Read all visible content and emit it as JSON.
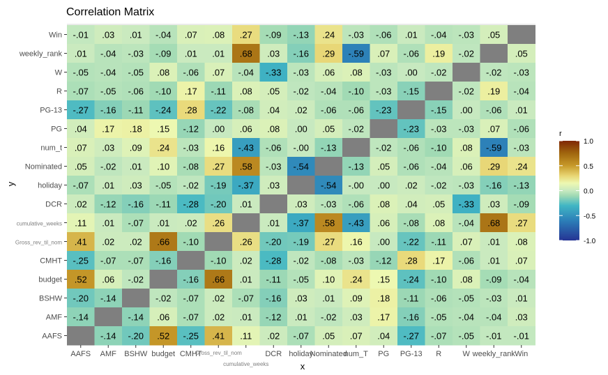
{
  "chart_data": {
    "type": "heatmap",
    "title": "Correlation Matrix",
    "xlabel": "x",
    "ylabel": "y",
    "x_categories": [
      "AAFS",
      "AMF",
      "BSHW",
      "budget",
      "CMHT",
      "Gross_rev_til_nom",
      "cumulative_weeks",
      "DCR",
      "holiday",
      "Nominated",
      "num_T",
      "PG",
      "PG-13",
      "R",
      "W",
      "weekly_rank",
      "Win"
    ],
    "y_categories": [
      "Win",
      "weekly_rank",
      "W",
      "R",
      "PG-13",
      "PG",
      "num_t",
      "Nominated",
      "holiday",
      "DCR",
      "cumulative_weeks",
      "Gross_rev_til_nom",
      "CMHT",
      "budget",
      "BSHW",
      "AMF",
      "AAFS"
    ],
    "values": [
      [
        -0.01,
        0.03,
        0.01,
        -0.04,
        0.07,
        0.08,
        0.27,
        -0.09,
        -0.13,
        0.24,
        -0.03,
        -0.06,
        0.01,
        -0.04,
        -0.03,
        0.05,
        null
      ],
      [
        0.01,
        -0.04,
        -0.03,
        -0.09,
        0.01,
        0.01,
        0.68,
        0.03,
        -0.16,
        0.29,
        -0.59,
        0.07,
        -0.06,
        0.19,
        -0.02,
        null,
        0.05
      ],
      [
        -0.05,
        -0.04,
        -0.05,
        0.08,
        -0.06,
        0.07,
        -0.04,
        -0.33,
        -0.03,
        0.06,
        0.08,
        -0.03,
        0.0,
        -0.02,
        null,
        -0.02,
        -0.03
      ],
      [
        -0.07,
        -0.05,
        -0.06,
        -0.1,
        0.17,
        -0.11,
        0.08,
        0.05,
        -0.02,
        -0.04,
        -0.1,
        -0.03,
        -0.15,
        null,
        -0.02,
        0.19,
        -0.04
      ],
      [
        -0.27,
        -0.16,
        -0.11,
        -0.24,
        0.28,
        -0.22,
        -0.08,
        0.04,
        0.02,
        -0.06,
        -0.06,
        -0.23,
        null,
        -0.15,
        0.0,
        -0.06,
        0.01
      ],
      [
        0.04,
        0.17,
        0.18,
        0.15,
        -0.12,
        0.0,
        0.06,
        0.08,
        0.0,
        0.05,
        -0.02,
        null,
        -0.23,
        -0.03,
        -0.03,
        0.07,
        -0.06
      ],
      [
        0.07,
        0.03,
        0.09,
        0.24,
        -0.03,
        0.16,
        -0.43,
        -0.06,
        -0.0,
        -0.13,
        null,
        -0.02,
        -0.06,
        -0.1,
        0.08,
        -0.59,
        -0.03
      ],
      [
        0.05,
        -0.02,
        0.01,
        0.1,
        -0.08,
        0.27,
        0.58,
        -0.03,
        -0.54,
        null,
        -0.13,
        0.05,
        -0.06,
        -0.04,
        0.06,
        0.29,
        0.24
      ],
      [
        -0.07,
        0.01,
        0.03,
        -0.05,
        -0.02,
        -0.19,
        -0.37,
        0.03,
        null,
        -0.54,
        -0.0,
        0.0,
        0.02,
        -0.02,
        -0.03,
        -0.16,
        -0.13
      ],
      [
        0.02,
        -0.12,
        -0.16,
        -0.11,
        -0.28,
        -0.2,
        0.01,
        null,
        0.03,
        -0.03,
        -0.06,
        0.08,
        0.04,
        0.05,
        -0.33,
        0.03,
        -0.09
      ],
      [
        0.11,
        0.01,
        -0.07,
        0.01,
        0.02,
        0.26,
        null,
        0.01,
        -0.37,
        0.58,
        -0.43,
        0.06,
        -0.08,
        0.08,
        -0.04,
        0.68,
        0.27
      ],
      [
        0.41,
        0.02,
        0.02,
        0.66,
        -0.1,
        null,
        0.26,
        -0.2,
        -0.19,
        0.27,
        0.16,
        0.0,
        -0.22,
        -0.11,
        0.07,
        0.01,
        0.08
      ],
      [
        -0.25,
        -0.07,
        -0.07,
        -0.16,
        null,
        -0.1,
        0.02,
        -0.28,
        -0.02,
        -0.08,
        -0.03,
        -0.12,
        0.28,
        0.17,
        -0.06,
        0.01,
        0.07
      ],
      [
        0.52,
        0.06,
        -0.02,
        null,
        -0.16,
        0.66,
        0.01,
        -0.11,
        -0.05,
        0.1,
        0.24,
        0.15,
        -0.24,
        -0.1,
        0.08,
        -0.09,
        -0.04
      ],
      [
        -0.2,
        -0.14,
        null,
        -0.02,
        -0.07,
        0.02,
        -0.07,
        -0.16,
        0.03,
        0.01,
        0.09,
        0.18,
        -0.11,
        -0.06,
        -0.05,
        -0.03,
        0.01
      ],
      [
        -0.14,
        null,
        -0.14,
        0.06,
        -0.07,
        0.02,
        0.01,
        -0.12,
        0.01,
        -0.02,
        0.03,
        0.17,
        -0.16,
        -0.05,
        -0.04,
        -0.04,
        0.03
      ],
      [
        null,
        -0.14,
        -0.2,
        0.52,
        -0.25,
        0.41,
        0.11,
        0.02,
        -0.07,
        0.05,
        0.07,
        0.04,
        -0.27,
        -0.07,
        -0.05,
        -0.01,
        -0.01
      ]
    ],
    "cell_labels": [
      [
        "-.01",
        ".03",
        ".01",
        "-.04",
        ".07",
        ".08",
        ".27",
        "-.09",
        "-.13",
        ".24",
        "-.03",
        "-.06",
        ".01",
        "-.04",
        "-.03",
        ".05",
        ""
      ],
      [
        ".01",
        "-.04",
        "-.03",
        "-.09",
        ".01",
        ".01",
        ".68",
        ".03",
        "-.16",
        ".29",
        "-.59",
        ".07",
        "-.06",
        ".19",
        "-.02",
        "",
        ".05"
      ],
      [
        "-.05",
        "-.04",
        "-.05",
        ".08",
        "-.06",
        ".07",
        "-.04",
        "-.33",
        "-.03",
        ".06",
        ".08",
        "-.03",
        ".00",
        "-.02",
        "",
        "-.02",
        "-.03"
      ],
      [
        "-.07",
        "-.05",
        "-.06",
        "-.10",
        ".17",
        "-.11",
        ".08",
        ".05",
        "-.02",
        "-.04",
        "-.10",
        "-.03",
        "-.15",
        "",
        "-.02",
        ".19",
        "-.04"
      ],
      [
        "-.27",
        "-.16",
        "-.11",
        "-.24",
        ".28",
        "-.22",
        "-.08",
        ".04",
        ".02",
        "-.06",
        "-.06",
        "-.23",
        "",
        "-.15",
        ".00",
        "-.06",
        ".01"
      ],
      [
        ".04",
        ".17",
        ".18",
        ".15",
        "-.12",
        ".00",
        ".06",
        ".08",
        ".00",
        ".05",
        "-.02",
        "",
        "-.23",
        "-.03",
        "-.03",
        ".07",
        "-.06"
      ],
      [
        ".07",
        ".03",
        ".09",
        ".24",
        "-.03",
        ".16",
        "-.43",
        "-.06",
        "-.00",
        "-.13",
        "",
        "-.02",
        "-.06",
        "-.10",
        ".08",
        "-.59",
        "-.03"
      ],
      [
        ".05",
        "-.02",
        ".01",
        ".10",
        "-.08",
        ".27",
        ".58",
        "-.03",
        "-.54",
        "",
        "-.13",
        ".05",
        "-.06",
        "-.04",
        ".06",
        ".29",
        ".24"
      ],
      [
        "-.07",
        ".01",
        ".03",
        "-.05",
        "-.02",
        "-.19",
        "-.37",
        ".03",
        "",
        "-.54",
        "-.00",
        ".00",
        ".02",
        "-.02",
        "-.03",
        "-.16",
        "-.13"
      ],
      [
        ".02",
        "-.12",
        "-.16",
        "-.11",
        "-.28",
        "-.20",
        ".01",
        "",
        ".03",
        "-.03",
        "-.06",
        ".08",
        ".04",
        ".05",
        "-.33",
        ".03",
        "-.09"
      ],
      [
        ".11",
        ".01",
        "-.07",
        ".01",
        ".02",
        ".26",
        "",
        ".01",
        "-.37",
        ".58",
        "-.43",
        ".06",
        "-.08",
        ".08",
        "-.04",
        ".68",
        ".27"
      ],
      [
        ".41",
        ".02",
        ".02",
        ".66",
        "-.10",
        "",
        ".26",
        "-.20",
        "-.19",
        ".27",
        ".16",
        ".00",
        "-.22",
        "-.11",
        ".07",
        ".01",
        ".08"
      ],
      [
        "-.25",
        "-.07",
        "-.07",
        "-.16",
        "",
        "-.10",
        ".02",
        "-.28",
        "-.02",
        "-.08",
        "-.03",
        "-.12",
        ".28",
        ".17",
        "-.06",
        ".01",
        ".07"
      ],
      [
        ".52",
        ".06",
        "-.02",
        "",
        "-.16",
        ".66",
        ".01",
        "-.11",
        "-.05",
        ".10",
        ".24",
        ".15",
        "-.24",
        "-.10",
        ".08",
        "-.09",
        "-.04"
      ],
      [
        "-.20",
        "-.14",
        "",
        "-.02",
        "-.07",
        ".02",
        "-.07",
        "-.16",
        ".03",
        ".01",
        ".09",
        ".18",
        "-.11",
        "-.06",
        "-.05",
        "-.03",
        ".01"
      ],
      [
        "-.14",
        "",
        "-.14",
        ".06",
        "-.07",
        ".02",
        ".01",
        "-.12",
        ".01",
        "-.02",
        ".03",
        ".17",
        "-.16",
        "-.05",
        "-.04",
        "-.04",
        ".03"
      ],
      [
        "",
        "-.14",
        "-.20",
        ".52",
        "-.25",
        ".41",
        ".11",
        ".02",
        "-.07",
        ".05",
        ".07",
        ".04",
        "-.27",
        "-.07",
        "-.05",
        "-.01",
        "-.01"
      ]
    ],
    "color_scale": {
      "range": [
        -1,
        1
      ],
      "stops": [
        {
          "value": -1.0,
          "color": "#253494"
        },
        {
          "value": -0.6,
          "color": "#2c7fb8"
        },
        {
          "value": -0.3,
          "color": "#41b6c4"
        },
        {
          "value": -0.1,
          "color": "#a1dab4"
        },
        {
          "value": 0.0,
          "color": "#c7e9c0"
        },
        {
          "value": 0.15,
          "color": "#edf8b1"
        },
        {
          "value": 0.3,
          "color": "#e8d573"
        },
        {
          "value": 0.5,
          "color": "#c79a2a"
        },
        {
          "value": 0.75,
          "color": "#a0660e"
        },
        {
          "value": 1.0,
          "color": "#7f2704"
        }
      ],
      "na_color": "#7f7f7f"
    },
    "legend": {
      "title": "r",
      "ticks": [
        1.0,
        0.5,
        0.0,
        -0.5,
        -1.0
      ],
      "tick_labels": [
        "1.0",
        "0.5",
        "0.0",
        "-0.5",
        "-1.0"
      ],
      "position": "right"
    },
    "panel_background": "#ebebeb"
  }
}
